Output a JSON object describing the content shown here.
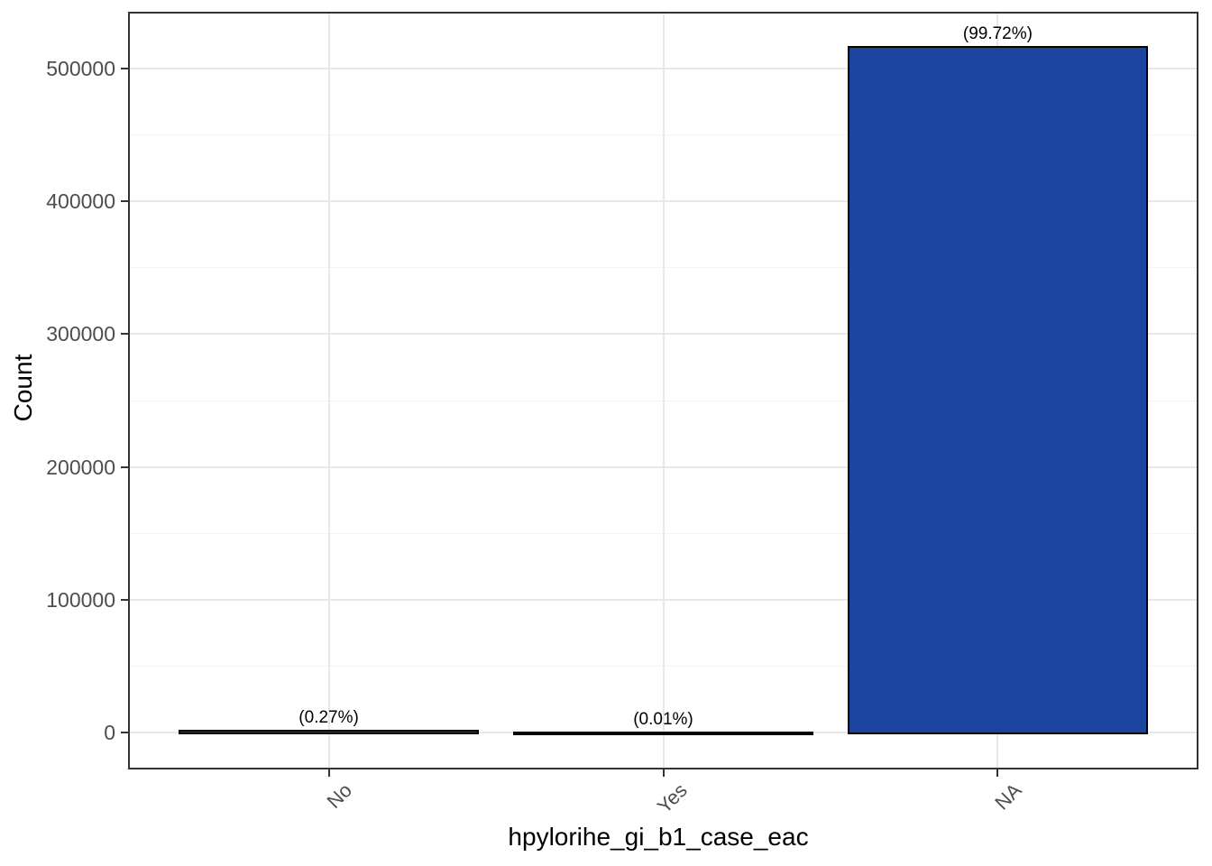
{
  "chart_data": {
    "type": "bar",
    "title": "",
    "xlabel": "hpylorihe_gi_b1_case_eac",
    "ylabel": "Count",
    "categories": [
      "No",
      "Yes",
      "NA"
    ],
    "values": [
      1400,
      52,
      516000
    ],
    "bar_labels": [
      "(0.27%)",
      "(0.01%)",
      "(99.72%)"
    ],
    "percentages": [
      0.27,
      0.01,
      99.72
    ],
    "yticks": [
      0,
      100000,
      200000,
      300000,
      400000,
      500000
    ],
    "ytick_labels": [
      "0",
      "100000",
      "200000",
      "300000",
      "400000",
      "500000"
    ],
    "minor_step": 50000,
    "ylim": [
      -27500,
      542500
    ],
    "bar_width_fraction": 0.9,
    "grid": true,
    "legend_position": "none",
    "colors": {
      "bar_fill": "#1b449e",
      "bar_stroke": "#000000",
      "grid_major": "#e8e8e8",
      "grid_minor": "#f3f3f3",
      "panel_border": "#333333",
      "tick_mark": "#333333",
      "tick_label": "#4d4d4d",
      "axis_title": "#000000",
      "bar_label": "#000000",
      "background": "#ffffff"
    }
  }
}
